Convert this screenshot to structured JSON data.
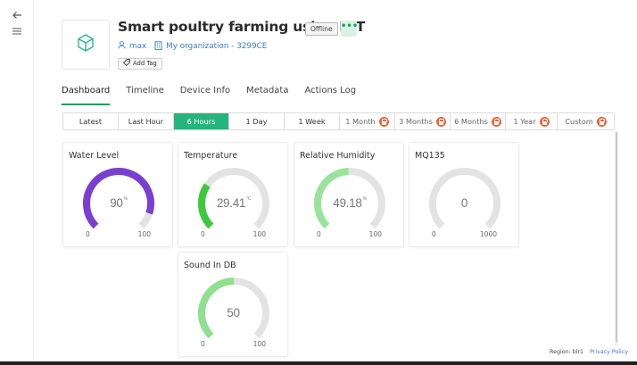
{
  "nav": {
    "back_icon": "arrow-left-icon",
    "menu_icon": "hamburger-menu-icon"
  },
  "device": {
    "title": "Smart poultry farming using IOT",
    "status": "Offline",
    "more_label": "•••",
    "owner": "max",
    "organization": "My organization - 3299CE",
    "add_tag_label": "Add Tag",
    "icon": "cube-icon"
  },
  "tabs": [
    "Dashboard",
    "Timeline",
    "Device Info",
    "Metadata",
    "Actions Log"
  ],
  "active_tab": "Dashboard",
  "time_ranges": [
    {
      "label": "Latest",
      "locked": false,
      "active": false
    },
    {
      "label": "Last Hour",
      "locked": false,
      "active": false
    },
    {
      "label": "6 Hours",
      "locked": false,
      "active": true
    },
    {
      "label": "1 Day",
      "locked": false,
      "active": false
    },
    {
      "label": "1 Week",
      "locked": false,
      "active": false
    },
    {
      "label": "1 Month",
      "locked": true,
      "active": false
    },
    {
      "label": "3 Months",
      "locked": true,
      "active": false
    },
    {
      "label": "6 Months",
      "locked": true,
      "active": false
    },
    {
      "label": "1 Year",
      "locked": true,
      "active": false
    },
    {
      "label": "Custom",
      "locked": true,
      "active": false
    }
  ],
  "widgets": [
    {
      "title": "Water Level",
      "value": "90",
      "unit": "%",
      "min": "0",
      "max": "100",
      "fill_fraction": 0.9,
      "color": "#7a3fd1"
    },
    {
      "title": "Temperature",
      "value": "29.41",
      "unit": "°C",
      "min": "0",
      "max": "100",
      "fill_fraction": 0.2941,
      "color": "#3cc93c"
    },
    {
      "title": "Relative Humidity",
      "value": "49.18",
      "unit": "%",
      "min": "0",
      "max": "100",
      "fill_fraction": 0.4918,
      "color": "#9be39b"
    },
    {
      "title": "MQ135",
      "value": "0",
      "unit": "",
      "min": "0",
      "max": "1000",
      "fill_fraction": 0.0,
      "color": "#9be39b"
    },
    {
      "title": "Sound In DB",
      "value": "50",
      "unit": "",
      "min": "0",
      "max": "100",
      "fill_fraction": 0.5,
      "color": "#8fe08f"
    }
  ],
  "footer": {
    "region": "Region: blr1",
    "privacy": "Privacy Policy"
  },
  "colors": {
    "accent": "#26b47a",
    "link": "#3a7bd5",
    "lock": "#e8663a",
    "gauge_track": "#e3e3e3"
  }
}
